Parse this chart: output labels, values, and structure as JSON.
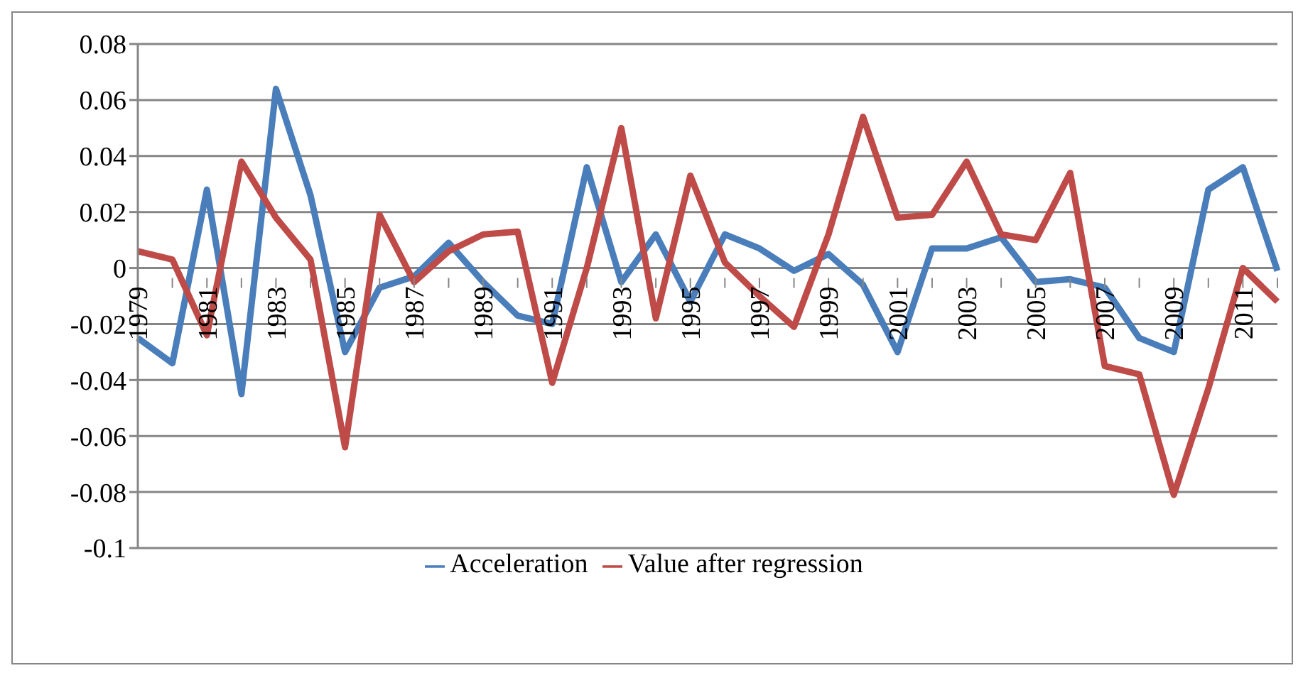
{
  "chart_data": {
    "type": "line",
    "categories": [
      "1979",
      null,
      "1981",
      null,
      "1983",
      null,
      "1985",
      null,
      "1987",
      null,
      "1989",
      null,
      "1991",
      null,
      "1993",
      null,
      "1995",
      null,
      "1997",
      null,
      "1999",
      null,
      "2001",
      null,
      "2003",
      null,
      "2005",
      null,
      "2007",
      null,
      "2009",
      null,
      "2011",
      null
    ],
    "series": [
      {
        "name": "Acceleration",
        "color": "#4a7ebb",
        "values": [
          -0.025,
          -0.034,
          0.028,
          -0.045,
          0.064,
          0.026,
          -0.03,
          -0.007,
          -0.003,
          0.009,
          -0.005,
          -0.017,
          -0.02,
          0.036,
          -0.005,
          0.012,
          -0.012,
          0.012,
          0.007,
          -0.001,
          0.005,
          -0.006,
          -0.03,
          0.007,
          0.007,
          0.011,
          -0.005,
          -0.004,
          -0.007,
          -0.025,
          -0.03,
          0.028,
          0.036,
          -0.001
        ]
      },
      {
        "name": "Value after regression",
        "color": "#be4b48",
        "values": [
          0.006,
          0.003,
          -0.024,
          0.038,
          0.018,
          0.003,
          -0.064,
          0.019,
          -0.005,
          0.006,
          0.012,
          0.013,
          -0.041,
          0.0,
          0.05,
          -0.018,
          0.033,
          0.002,
          -0.01,
          -0.021,
          0.012,
          0.054,
          0.018,
          0.019,
          0.038,
          0.012,
          0.01,
          0.034,
          -0.035,
          -0.038,
          -0.081,
          -0.043,
          0,
          -0.012
        ]
      }
    ],
    "ylim": [
      -0.1,
      0.08
    ],
    "yticks": [
      {
        "value": -0.1,
        "label": "-0.1"
      },
      {
        "value": -0.08,
        "label": "-0.08"
      },
      {
        "value": -0.06,
        "label": "-0.06"
      },
      {
        "value": -0.04,
        "label": "-0.04"
      },
      {
        "value": -0.02,
        "label": "-0.02"
      },
      {
        "value": 0,
        "label": "0"
      },
      {
        "value": 0.02,
        "label": "0.02"
      },
      {
        "value": 0.04,
        "label": "0.04"
      },
      {
        "value": 0.06,
        "label": "0.06"
      },
      {
        "value": 0.08,
        "label": "0.08"
      }
    ],
    "grid": "y",
    "legend": "bottom",
    "marker": "none",
    "line_style": "solid"
  }
}
